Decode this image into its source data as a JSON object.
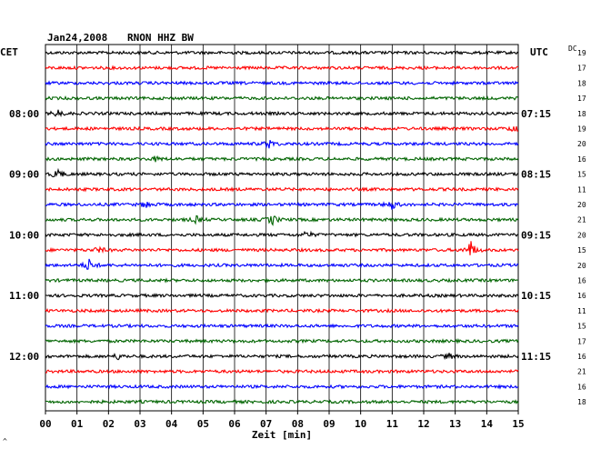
{
  "header": {
    "date": "Jan24,2008",
    "station": "RNON HHZ BW",
    "left_zone": "CET",
    "right_zone": "UTC",
    "dc_label": "DC"
  },
  "footer": {
    "xlabel": "Zeit [min]",
    "corner_mark": "^"
  },
  "chart_data": {
    "type": "seismogram",
    "title": "Jan24,2008 RNON HHZ BW",
    "xlabel": "Zeit [min]",
    "x_ticks": [
      "00",
      "01",
      "02",
      "03",
      "04",
      "05",
      "06",
      "07",
      "08",
      "09",
      "10",
      "11",
      "12",
      "13",
      "14",
      "15"
    ],
    "xlim": [
      0,
      15
    ],
    "grid": true,
    "trace_count": 24,
    "trace_colors": [
      "#000000",
      "#ff0000",
      "#0000ff",
      "#006400"
    ],
    "left_time_labels": [
      {
        "trace": 4,
        "text": "08:00"
      },
      {
        "trace": 8,
        "text": "09:00"
      },
      {
        "trace": 12,
        "text": "10:00"
      },
      {
        "trace": 16,
        "text": "11:00"
      },
      {
        "trace": 20,
        "text": "12:00"
      }
    ],
    "right_time_labels": [
      {
        "trace": 4,
        "text": "07:15"
      },
      {
        "trace": 8,
        "text": "08:15"
      },
      {
        "trace": 12,
        "text": "09:15"
      },
      {
        "trace": 16,
        "text": "10:15"
      },
      {
        "trace": 20,
        "text": "11:15"
      }
    ],
    "dc_offsets": [
      19,
      17,
      18,
      17,
      18,
      19,
      20,
      16,
      15,
      11,
      20,
      21,
      20,
      15,
      20,
      16,
      16,
      11,
      15,
      17,
      16,
      21,
      16,
      18
    ],
    "events": [
      {
        "trace": 4,
        "minute": 0.4,
        "amp": 0.6
      },
      {
        "trace": 5,
        "minute": 14.9,
        "amp": 0.7
      },
      {
        "trace": 6,
        "minute": 7.1,
        "amp": 0.8
      },
      {
        "trace": 7,
        "minute": 3.5,
        "amp": 0.4
      },
      {
        "trace": 8,
        "minute": 0.4,
        "amp": 1.0
      },
      {
        "trace": 10,
        "minute": 3.2,
        "amp": 0.6
      },
      {
        "trace": 10,
        "minute": 11.0,
        "amp": 0.9
      },
      {
        "trace": 11,
        "minute": 4.8,
        "amp": 0.6
      },
      {
        "trace": 11,
        "minute": 7.2,
        "amp": 0.9
      },
      {
        "trace": 12,
        "minute": 8.3,
        "amp": 0.6
      },
      {
        "trace": 13,
        "minute": 1.7,
        "amp": 0.5
      },
      {
        "trace": 13,
        "minute": 13.5,
        "amp": 1.6
      },
      {
        "trace": 14,
        "minute": 1.4,
        "amp": 1.2
      },
      {
        "trace": 20,
        "minute": 2.3,
        "amp": 0.5
      },
      {
        "trace": 20,
        "minute": 12.8,
        "amp": 0.5
      }
    ]
  }
}
